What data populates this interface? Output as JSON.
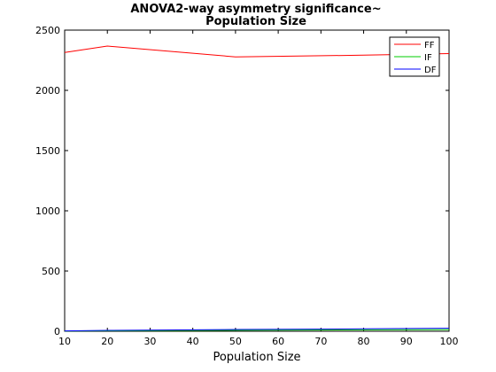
{
  "chart_data": {
    "type": "line",
    "title_line1": "ANOVA2-way asymmetry significance~",
    "title_line2": "Population Size",
    "xlabel": "Population Size",
    "ylabel": "",
    "xlim": [
      10,
      100
    ],
    "ylim": [
      0,
      2500
    ],
    "xticks": [
      "10",
      "20",
      "30",
      "40",
      "50",
      "60",
      "70",
      "80",
      "90",
      "100"
    ],
    "yticks": [
      "0",
      "500",
      "1000",
      "1500",
      "2000",
      "2500"
    ],
    "x": [
      10,
      20,
      50,
      80,
      100
    ],
    "series": [
      {
        "name": "FF",
        "color": "#ff0000",
        "values": [
          2315,
          2368,
          2278,
          2292,
          2305
        ]
      },
      {
        "name": "IF",
        "color": "#00cc00",
        "values": [
          2,
          4,
          8,
          12,
          14
        ]
      },
      {
        "name": "DF",
        "color": "#0000ff",
        "values": [
          3,
          7,
          15,
          20,
          25
        ]
      }
    ],
    "grid": false,
    "legend_position": "top-right"
  }
}
